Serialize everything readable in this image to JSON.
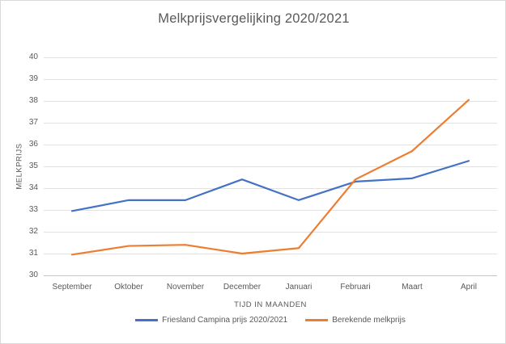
{
  "chart_data": {
    "type": "line",
    "title": "Melkprijsvergelijking 2020/2021",
    "xlabel": "TIJD IN MAANDEN",
    "ylabel": "MELKPRIJS",
    "categories": [
      "September",
      "Oktober",
      "November",
      "December",
      "Januari",
      "Februari",
      "Maart",
      "April"
    ],
    "series": [
      {
        "name": "Friesland Campina prijs 2020/2021",
        "color": "#4472C4",
        "values": [
          32.95,
          33.45,
          33.45,
          34.4,
          33.45,
          34.3,
          34.45,
          35.25
        ]
      },
      {
        "name": "Berekende melkprijs",
        "color": "#ED7D31",
        "values": [
          30.95,
          31.35,
          31.4,
          31.0,
          31.25,
          34.4,
          35.7,
          38.05
        ]
      }
    ],
    "ylim": [
      30,
      40
    ],
    "ytick_step": 1,
    "grid": "horizontal",
    "legend_position": "bottom",
    "text_color": "#595959",
    "gridline_color": "#E2E2E2",
    "axisline_color": "#C6C6C6",
    "background_color": "#FFFFFF"
  }
}
